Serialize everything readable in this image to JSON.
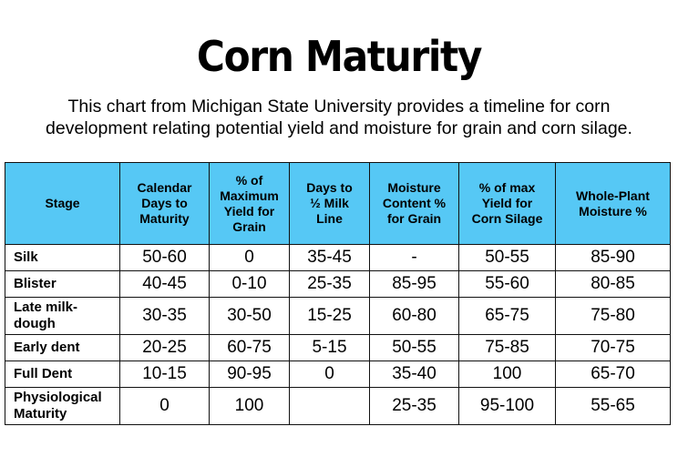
{
  "title": "Corn Maturity",
  "subtitle_line1": "This chart from Michigan State University provides a timeline for corn",
  "subtitle_line2": "development relating potential yield and moisture for grain and corn silage.",
  "table": {
    "headers": [
      [
        "Stage"
      ],
      [
        "Calendar",
        "Days to",
        "Maturity"
      ],
      [
        "% of",
        "Maximum",
        "Yield for",
        "Grain"
      ],
      [
        "Days to",
        "½ Milk",
        "Line"
      ],
      [
        "Moisture",
        "Content %",
        "for Grain"
      ],
      [
        "% of max",
        "Yield for",
        "Corn Silage"
      ],
      [
        "Whole-Plant",
        "Moisture %"
      ]
    ],
    "rows": [
      {
        "stage": [
          "Silk"
        ],
        "values": [
          "50-60",
          "0",
          "35-45",
          "-",
          "50-55",
          "85-90"
        ]
      },
      {
        "stage": [
          "Blister"
        ],
        "values": [
          "40-45",
          "0-10",
          "25-35",
          "85-95",
          "55-60",
          "80-85"
        ]
      },
      {
        "stage": [
          "Late milk-",
          "dough"
        ],
        "values": [
          "30-35",
          "30-50",
          "15-25",
          "60-80",
          "65-75",
          "75-80"
        ]
      },
      {
        "stage": [
          "Early dent"
        ],
        "values": [
          "20-25",
          "60-75",
          "5-15",
          "50-55",
          "75-85",
          "70-75"
        ]
      },
      {
        "stage": [
          "Full Dent"
        ],
        "values": [
          "10-15",
          "90-95",
          "0",
          "35-40",
          "100",
          "65-70"
        ]
      },
      {
        "stage": [
          "Physiological",
          "Maturity"
        ],
        "values": [
          "0",
          "100",
          "",
          "25-35",
          "95-100",
          "55-65"
        ]
      }
    ]
  }
}
